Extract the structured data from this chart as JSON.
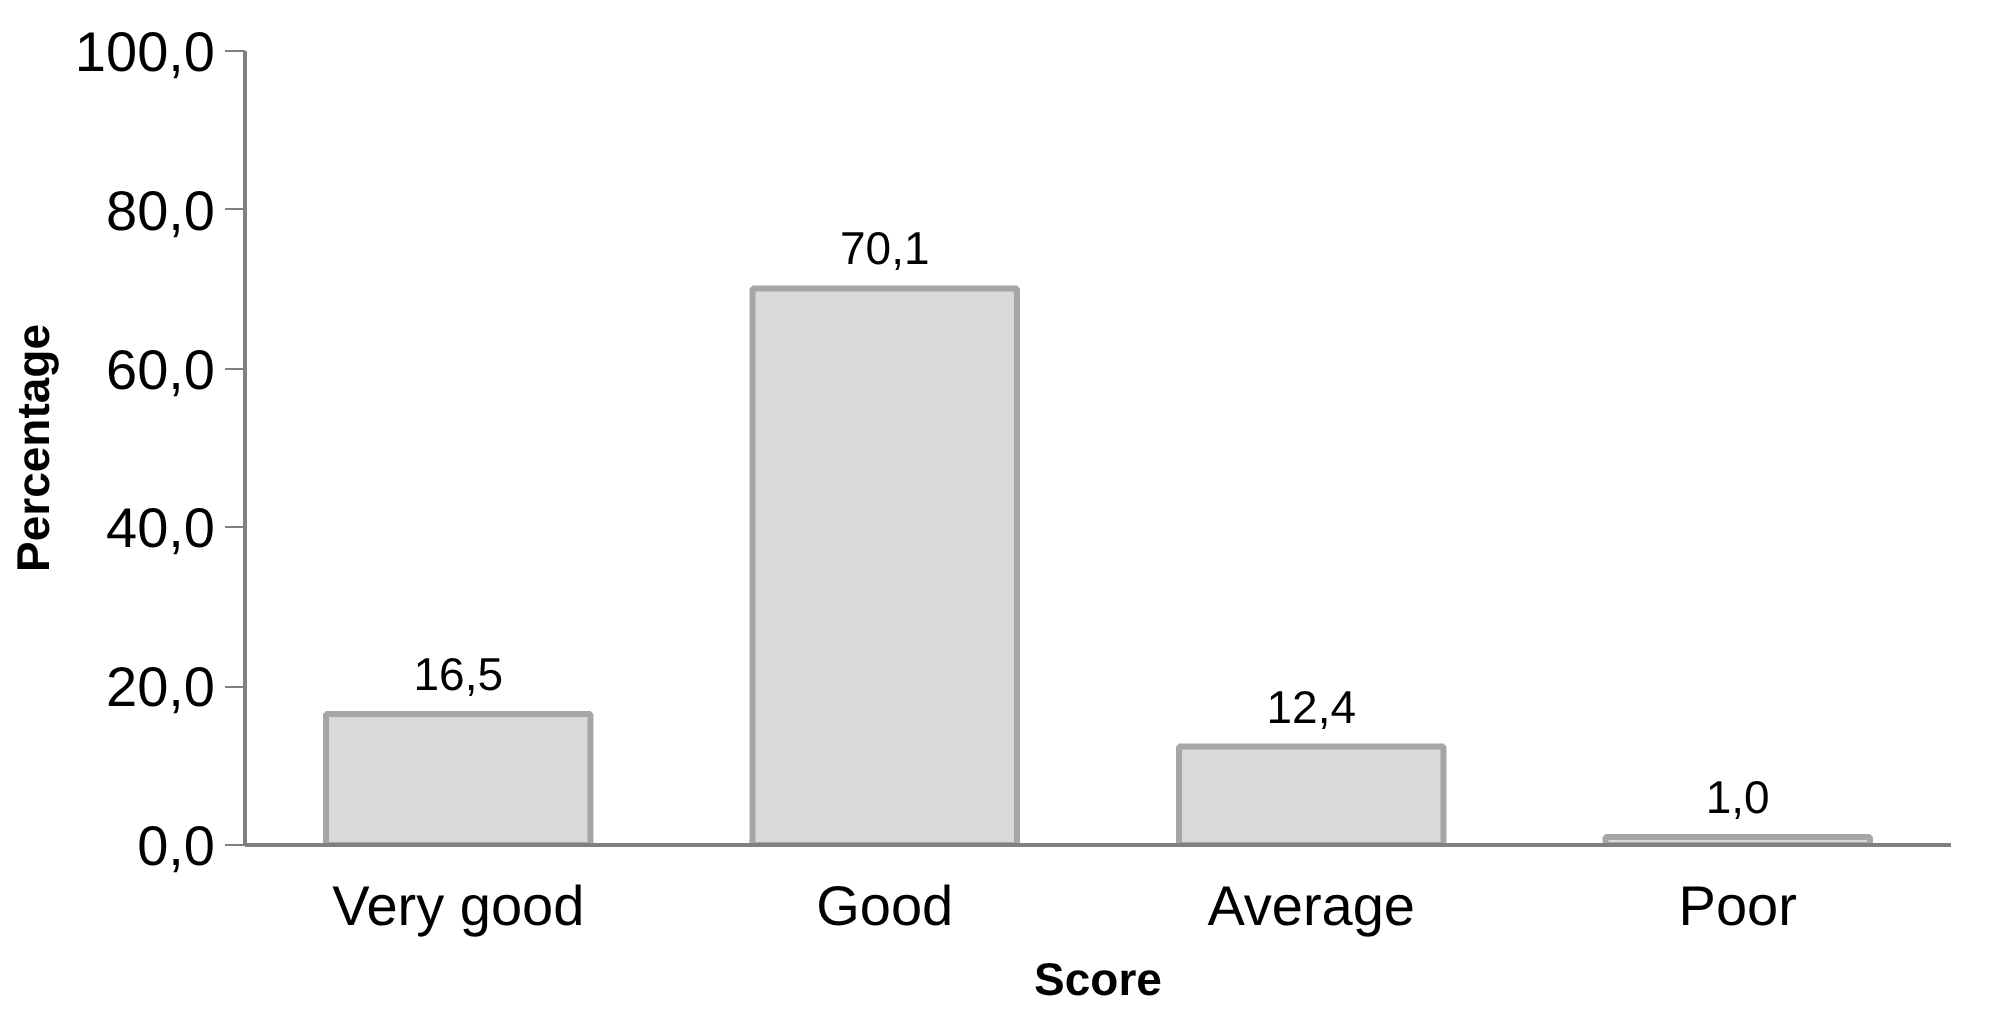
{
  "chart_data": {
    "type": "bar",
    "xlabel": "Score",
    "ylabel": "Percentage",
    "categories": [
      "Very good",
      "Good",
      "Average",
      "Poor"
    ],
    "values": [
      16.5,
      70.1,
      12.4,
      1.0
    ],
    "value_labels": [
      "16,5",
      "70,1",
      "12,4",
      "1,0"
    ],
    "color": "#d9d9d9",
    "ylim": [
      0,
      100
    ],
    "yticks": [
      {
        "value": 0,
        "label": "0,0"
      },
      {
        "value": 20,
        "label": "20,0"
      },
      {
        "value": 40,
        "label": "40,0"
      },
      {
        "value": 60,
        "label": "60,0"
      },
      {
        "value": 80,
        "label": "80,0"
      },
      {
        "value": 100,
        "label": "100,0"
      }
    ],
    "grid": false
  }
}
